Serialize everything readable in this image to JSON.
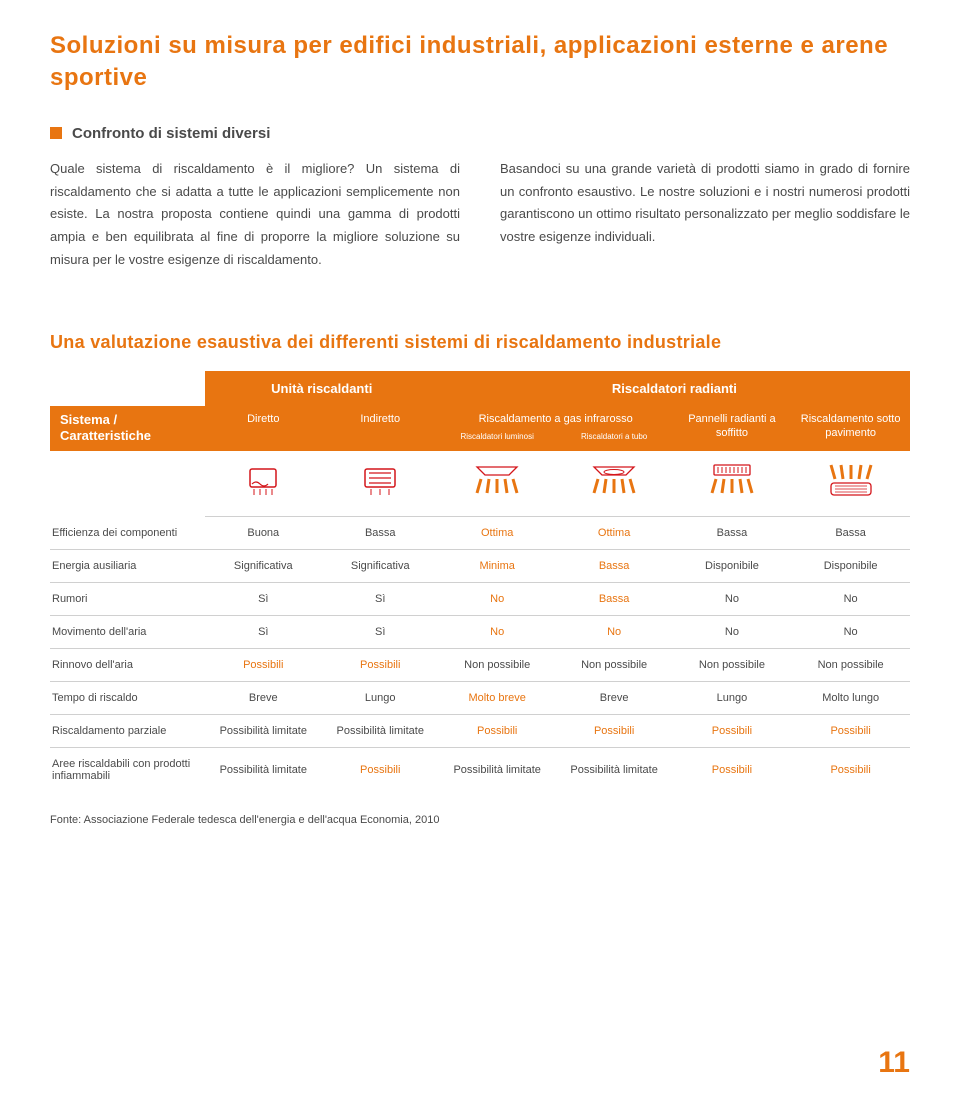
{
  "colors": {
    "accent": "#e87511",
    "text": "#4a4a4a",
    "red": "#d4151a",
    "border": "#d0d0d0"
  },
  "title": "Soluzioni su misura per edifici industriali, applicazioni esterne e arene sportive",
  "subtitle": "Confronto di sistemi diversi",
  "para1": "Quale sistema di riscaldamento è il migliore? Un sistema di riscaldamento che si adatta a tutte le applicazioni semplicemente non esiste. La nostra proposta contiene quindi una gamma di prodotti ampia e ben equilibrata al fine di proporre la migliore soluzione su misura per le vostre esigenze di riscaldamento.",
  "para2": "Basandoci su una grande varietà di prodotti siamo in grado di fornire un confronto esaustivo. Le nostre soluzioni e i nostri numerosi prodotti garantiscono un ottimo risultato personalizzato per meglio soddisfare le vostre esigenze individuali.",
  "table_title": "Una valutazione esaustiva dei differenti sistemi di riscaldamento industriale",
  "group_headers": {
    "g1": "Unità riscaldanti",
    "g2": "Riscaldatori radianti"
  },
  "col_headers": {
    "sys": "Sistema / Caratteristiche",
    "c1": "Diretto",
    "c2": "Indiretto",
    "c3_top": "Riscaldamento a gas infrarosso",
    "c3a": "Riscaldatori luminosi",
    "c3b": "Riscaldatori a tubo",
    "c4": "Pannelli radianti a soffitto",
    "c5": "Riscaldamento sotto pavimento"
  },
  "rows": [
    {
      "label": "Efficienza dei componenti",
      "cells": [
        "Buona",
        "Bassa",
        "Ottima",
        "Ottima",
        "Bassa",
        "Bassa"
      ],
      "hl": [
        0,
        0,
        1,
        1,
        0,
        0
      ]
    },
    {
      "label": "Energia ausiliaria",
      "cells": [
        "Significativa",
        "Significativa",
        "Minima",
        "Bassa",
        "Disponibile",
        "Disponibile"
      ],
      "hl": [
        0,
        0,
        1,
        1,
        0,
        0
      ]
    },
    {
      "label": "Rumori",
      "cells": [
        "Sì",
        "Sì",
        "No",
        "Bassa",
        "No",
        "No"
      ],
      "hl": [
        0,
        0,
        1,
        1,
        0,
        0
      ]
    },
    {
      "label": "Movimento dell'aria",
      "cells": [
        "Sì",
        "Sì",
        "No",
        "No",
        "No",
        "No"
      ],
      "hl": [
        0,
        0,
        1,
        1,
        0,
        0
      ]
    },
    {
      "label": "Rinnovo dell'aria",
      "cells": [
        "Possibili",
        "Possibili",
        "Non possibile",
        "Non possibile",
        "Non possibile",
        "Non possibile"
      ],
      "hl": [
        1,
        1,
        0,
        0,
        0,
        0
      ]
    },
    {
      "label": "Tempo di riscaldo",
      "cells": [
        "Breve",
        "Lungo",
        "Molto breve",
        "Breve",
        "Lungo",
        "Molto lungo"
      ],
      "hl": [
        0,
        0,
        1,
        0,
        0,
        0
      ]
    },
    {
      "label": "Riscaldamento parziale",
      "cells": [
        "Possibilità limitate",
        "Possibilità limitate",
        "Possibili",
        "Possibili",
        "Possibili",
        "Possibili"
      ],
      "hl": [
        0,
        0,
        1,
        1,
        1,
        1
      ]
    },
    {
      "label": "Aree riscaldabili con prodotti infiammabili",
      "cells": [
        "Possibilità limitate",
        "Possibili",
        "Possibilità limitate",
        "Possibilità limitate",
        "Possibili",
        "Possibili"
      ],
      "hl": [
        0,
        1,
        0,
        0,
        1,
        1
      ]
    }
  ],
  "source": "Fonte: Associazione Federale tedesca dell'energia e dell'acqua Economia, 2010",
  "page_number": "11"
}
